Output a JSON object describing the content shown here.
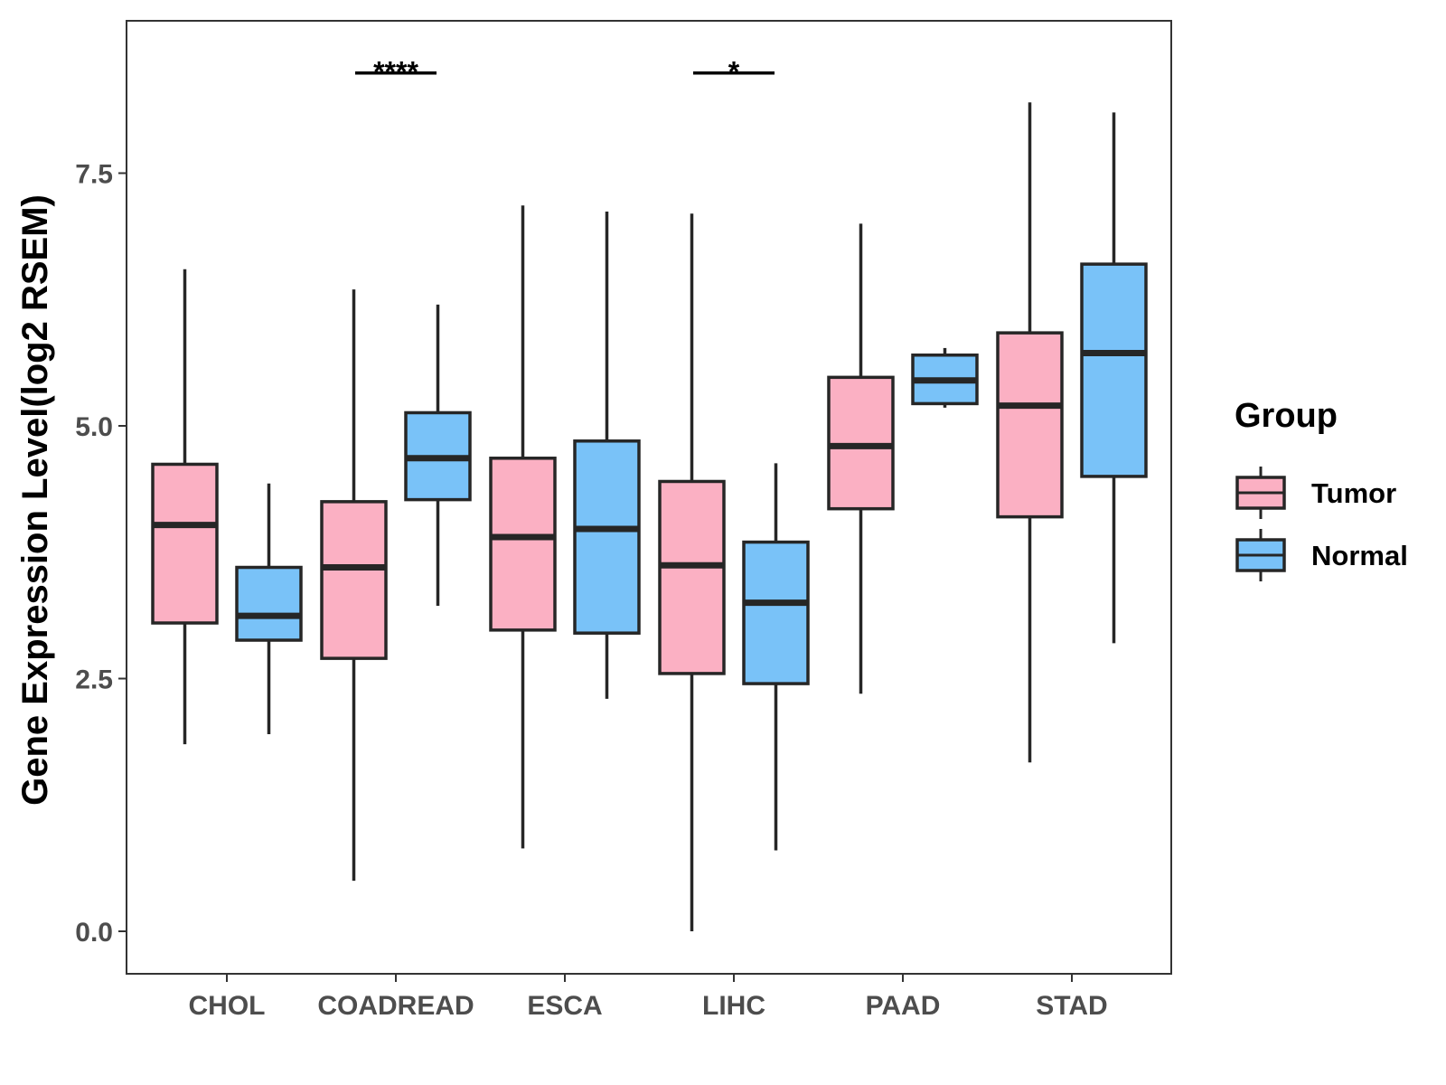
{
  "chart_data": {
    "type": "boxplot",
    "title": "",
    "xlabel": "",
    "ylabel": "Gene Expression Level(log2 RSEM)",
    "ylim": [
      -0.42,
      9.0
    ],
    "yticks": [
      0.0,
      2.5,
      5.0,
      7.5
    ],
    "ytick_labels": [
      "0.0",
      "2.5",
      "5.0",
      "7.5"
    ],
    "grid": false,
    "legend_position": "right",
    "categories": [
      "CHOL",
      "COADREAD",
      "ESCA",
      "LIHC",
      "PAAD",
      "STAD"
    ],
    "legend": {
      "title": "Group",
      "items": [
        {
          "name": "Tumor",
          "color": "#FBB0C3"
        },
        {
          "name": "Normal",
          "color": "#79C2F8"
        }
      ]
    },
    "series": [
      {
        "name": "Tumor",
        "color": "#FBB0C3",
        "boxes": [
          {
            "whisker_low": 1.85,
            "q1": 3.05,
            "median": 4.02,
            "q3": 4.62,
            "whisker_high": 6.55
          },
          {
            "whisker_low": 0.5,
            "q1": 2.7,
            "median": 3.6,
            "q3": 4.25,
            "whisker_high": 6.35
          },
          {
            "whisker_low": 0.82,
            "q1": 2.98,
            "median": 3.9,
            "q3": 4.68,
            "whisker_high": 7.18
          },
          {
            "whisker_low": 0.0,
            "q1": 2.55,
            "median": 3.62,
            "q3": 4.45,
            "whisker_high": 7.1
          },
          {
            "whisker_low": 2.35,
            "q1": 4.18,
            "median": 4.8,
            "q3": 5.48,
            "whisker_high": 7.0
          },
          {
            "whisker_low": 1.67,
            "q1": 4.1,
            "median": 5.2,
            "q3": 5.92,
            "whisker_high": 8.2
          }
        ]
      },
      {
        "name": "Normal",
        "color": "#79C2F8",
        "boxes": [
          {
            "whisker_low": 1.95,
            "q1": 2.88,
            "median": 3.12,
            "q3": 3.6,
            "whisker_high": 4.43
          },
          {
            "whisker_low": 3.22,
            "q1": 4.27,
            "median": 4.68,
            "q3": 5.13,
            "whisker_high": 6.2
          },
          {
            "whisker_low": 2.3,
            "q1": 2.95,
            "median": 3.98,
            "q3": 4.85,
            "whisker_high": 7.12
          },
          {
            "whisker_low": 0.8,
            "q1": 2.45,
            "median": 3.25,
            "q3": 3.85,
            "whisker_high": 4.63
          },
          {
            "whisker_low": 5.18,
            "q1": 5.22,
            "median": 5.45,
            "q3": 5.7,
            "whisker_high": 5.77
          },
          {
            "whisker_low": 2.85,
            "q1": 4.5,
            "median": 5.72,
            "q3": 6.6,
            "whisker_high": 8.1
          }
        ]
      }
    ],
    "annotations": [
      {
        "category": "COADREAD",
        "label": "****",
        "y": 8.5
      },
      {
        "category": "LIHC",
        "label": "*",
        "y": 8.5
      }
    ]
  }
}
